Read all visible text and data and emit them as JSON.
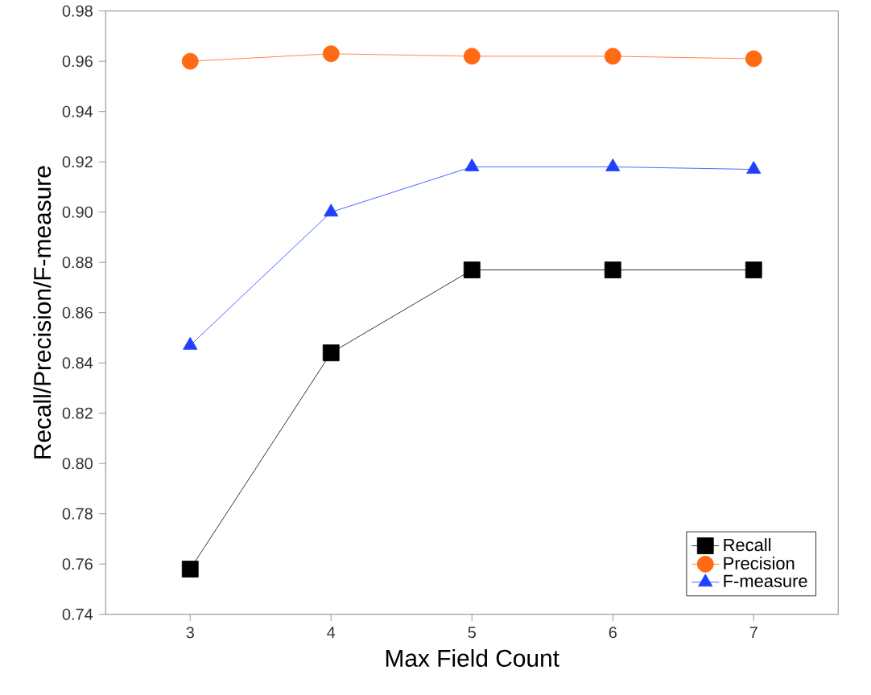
{
  "chart_data": {
    "type": "line",
    "xlabel": "Max Field Count",
    "ylabel": "Recall/Precision/F-measure",
    "x": [
      3,
      4,
      5,
      6,
      7
    ],
    "series": [
      {
        "name": "Recall",
        "color": "#000000",
        "marker": "square",
        "values": [
          0.758,
          0.844,
          0.877,
          0.877,
          0.877
        ]
      },
      {
        "name": "Precision",
        "color": "#ff6a13",
        "marker": "circle",
        "values": [
          0.96,
          0.963,
          0.962,
          0.962,
          0.961
        ]
      },
      {
        "name": "F-measure",
        "color": "#2040ff",
        "marker": "triangle",
        "values": [
          0.847,
          0.9,
          0.918,
          0.918,
          0.917
        ]
      }
    ],
    "xlim": [
      2.4,
      7.6
    ],
    "xticks": [
      3,
      4,
      5,
      6,
      7
    ],
    "ylim": [
      0.74,
      0.98
    ],
    "yticks": [
      {
        "value": 0.74,
        "label": "0.74"
      },
      {
        "value": 0.76,
        "label": "0.76"
      },
      {
        "value": 0.78,
        "label": "0.78"
      },
      {
        "value": 0.8,
        "label": "0.80"
      },
      {
        "value": 0.82,
        "label": "0.82"
      },
      {
        "value": 0.84,
        "label": "0.84"
      },
      {
        "value": 0.86,
        "label": "0.86"
      },
      {
        "value": 0.88,
        "label": "0.88"
      },
      {
        "value": 0.9,
        "label": "0.90"
      },
      {
        "value": 0.92,
        "label": "0.92"
      },
      {
        "value": 0.94,
        "label": "0.94"
      },
      {
        "value": 0.96,
        "label": "0.96"
      },
      {
        "value": 0.98,
        "label": "0.98"
      }
    ],
    "legend": "bottom right",
    "grid": false
  }
}
